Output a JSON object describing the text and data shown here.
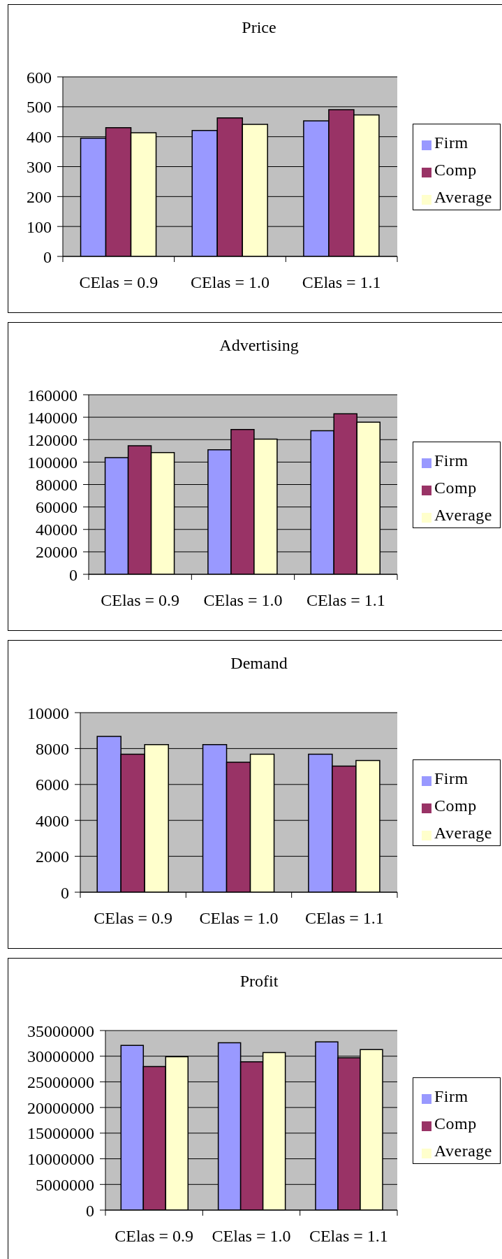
{
  "chart_data": [
    {
      "type": "bar",
      "title": "Price",
      "categories": [
        "CElas = 0.9",
        "CElas = 1.0",
        "CElas = 1.1"
      ],
      "series": [
        {
          "name": "Firm",
          "color": "#9999ff",
          "values": [
            395,
            421,
            453
          ]
        },
        {
          "name": "Comp",
          "color": "#993366",
          "values": [
            430,
            463,
            490
          ]
        },
        {
          "name": "Average",
          "color": "#ffffcc",
          "values": [
            413,
            441,
            473
          ]
        }
      ],
      "ylim": [
        0,
        600
      ],
      "yticks": [
        0,
        100,
        200,
        300,
        400,
        500,
        600
      ],
      "grid": "y",
      "legend": "right"
    },
    {
      "type": "bar",
      "title": "Advertising",
      "categories": [
        "CElas = 0.9",
        "CElas = 1.0",
        "CElas = 1.1"
      ],
      "series": [
        {
          "name": "Firm",
          "color": "#9999ff",
          "values": [
            104000,
            111000,
            128000
          ]
        },
        {
          "name": "Comp",
          "color": "#993366",
          "values": [
            114500,
            129000,
            143000
          ]
        },
        {
          "name": "Average",
          "color": "#ffffcc",
          "values": [
            108500,
            120500,
            135500
          ]
        }
      ],
      "ylim": [
        0,
        160000
      ],
      "yticks": [
        0,
        20000,
        40000,
        60000,
        80000,
        100000,
        120000,
        140000,
        160000
      ],
      "grid": "y",
      "legend": "right"
    },
    {
      "type": "bar",
      "title": "Demand",
      "categories": [
        "CElas = 0.9",
        "CElas = 1.0",
        "CElas = 1.1"
      ],
      "series": [
        {
          "name": "Firm",
          "color": "#9999ff",
          "values": [
            8680,
            8220,
            7680
          ]
        },
        {
          "name": "Comp",
          "color": "#993366",
          "values": [
            7680,
            7240,
            7020
          ]
        },
        {
          "name": "Average",
          "color": "#ffffcc",
          "values": [
            8220,
            7680,
            7330
          ]
        }
      ],
      "ylim": [
        0,
        10000
      ],
      "yticks": [
        0,
        2000,
        4000,
        6000,
        8000,
        10000
      ],
      "grid": "y",
      "legend": "right"
    },
    {
      "type": "bar",
      "title": "Profit",
      "categories": [
        "CElas = 0.9",
        "CElas = 1.0",
        "CElas = 1.1"
      ],
      "series": [
        {
          "name": "Firm",
          "color": "#9999ff",
          "values": [
            32100000,
            32600000,
            32800000
          ]
        },
        {
          "name": "Comp",
          "color": "#993366",
          "values": [
            28000000,
            28900000,
            29700000
          ]
        },
        {
          "name": "Average",
          "color": "#ffffcc",
          "values": [
            29900000,
            30700000,
            31300000
          ]
        }
      ],
      "ylim": [
        0,
        35000000
      ],
      "yticks": [
        0,
        5000000,
        10000000,
        15000000,
        20000000,
        25000000,
        30000000,
        35000000
      ],
      "grid": "y",
      "legend": "right"
    }
  ]
}
